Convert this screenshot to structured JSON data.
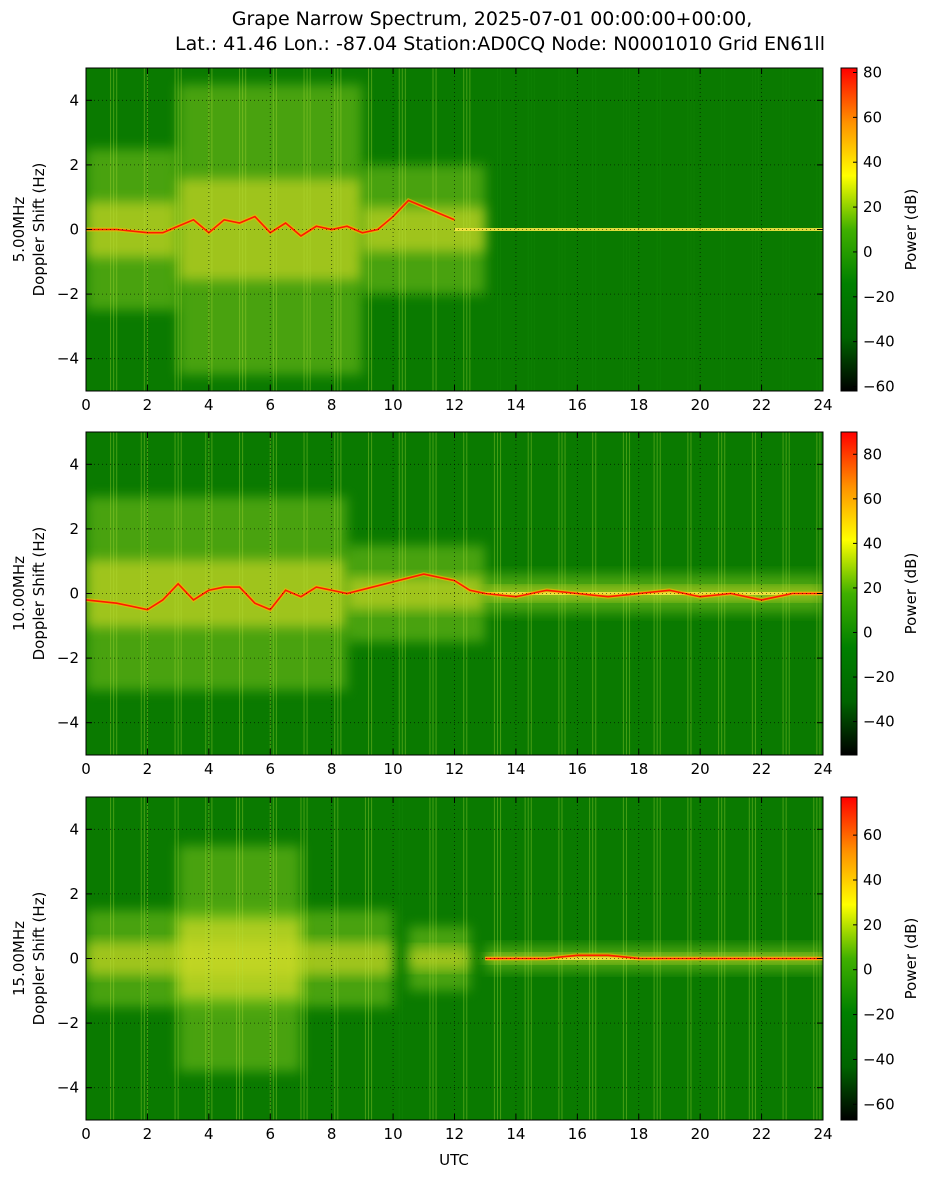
{
  "figure": {
    "title_line1": "Grape Narrow Spectrum, 2025-07-01 00:00:00+00:00,",
    "title_line2": "Lat.: 41.46 Lon.: -87.04 Station:AD0CQ Node: N0001010 Grid EN61ll",
    "xlabel": "UTC"
  },
  "colors": {
    "background_green": "#0a7a00",
    "trace_red": "#ff1a00",
    "activity_yellow": "#f4e62a",
    "colormap": [
      "#000000",
      "#006400",
      "#008000",
      "#40b000",
      "#ffff00",
      "#ff9000",
      "#ff0000"
    ]
  },
  "chart_data": [
    {
      "type": "heatmap",
      "band_label": "5.00MHz",
      "ylabel": "Doppler Shift (Hz)",
      "xlim": [
        0,
        24
      ],
      "ylim": [
        -5,
        5
      ],
      "x_ticks": [
        "0",
        "2",
        "4",
        "6",
        "8",
        "10",
        "12",
        "14",
        "16",
        "18",
        "20",
        "22",
        "24"
      ],
      "y_ticks": [
        "4",
        "2",
        "0",
        "−2",
        "−4"
      ],
      "grid": true,
      "colorbar": {
        "label": "Power (dB)",
        "range": [
          -62,
          82
        ],
        "ticks": [
          "80",
          "60",
          "40",
          "20",
          "0",
          "−20",
          "−40",
          "−60"
        ]
      },
      "activity": [
        {
          "x": [
            0.0,
            3.0
          ],
          "y_spread": 2.5
        },
        {
          "x": [
            3.0,
            9.0
          ],
          "y_spread": 4.5
        },
        {
          "x": [
            9.0,
            13.0
          ],
          "y_spread": 2.0
        }
      ],
      "doppler_trace": {
        "x": [
          0,
          1,
          2,
          2.5,
          3,
          3.5,
          4,
          4.5,
          5,
          5.5,
          6,
          6.5,
          7,
          7.5,
          8,
          8.5,
          9,
          9.5,
          10,
          10.5,
          11,
          11.5,
          12
        ],
        "y": [
          0,
          0,
          -0.1,
          -0.1,
          0.1,
          0.3,
          -0.1,
          0.3,
          0.2,
          0.4,
          -0.1,
          0.2,
          -0.2,
          0.1,
          0.0,
          0.1,
          -0.1,
          0.0,
          0.4,
          0.9,
          0.7,
          0.5,
          0.3
        ]
      },
      "carrier_line": {
        "x": [
          12,
          24
        ],
        "y": 0
      }
    },
    {
      "type": "heatmap",
      "band_label": "10.00MHz",
      "ylabel": "Doppler Shift (Hz)",
      "xlim": [
        0,
        24
      ],
      "ylim": [
        -5,
        5
      ],
      "x_ticks": [
        "0",
        "2",
        "4",
        "6",
        "8",
        "10",
        "12",
        "14",
        "16",
        "18",
        "20",
        "22",
        "24"
      ],
      "y_ticks": [
        "4",
        "2",
        "0",
        "−2",
        "−4"
      ],
      "grid": true,
      "colorbar": {
        "label": "Power (dB)",
        "range": [
          -55,
          90
        ],
        "ticks": [
          "80",
          "60",
          "40",
          "20",
          "0",
          "−20",
          "−40"
        ]
      },
      "activity": [
        {
          "x": [
            0.0,
            8.5
          ],
          "y_spread": 3.0
        },
        {
          "x": [
            8.5,
            13.0
          ],
          "y_spread": 1.5
        },
        {
          "x": [
            13.0,
            24.0
          ],
          "y_spread": 0.6
        }
      ],
      "doppler_trace": {
        "x": [
          0,
          1,
          2,
          2.5,
          3,
          3.5,
          4,
          4.5,
          5,
          5.5,
          6,
          6.5,
          7,
          7.5,
          8,
          8.5,
          11,
          11.5,
          12,
          12.5,
          13,
          14,
          15,
          16,
          17,
          18,
          19,
          20,
          21,
          22,
          23,
          24
        ],
        "y": [
          -0.2,
          -0.3,
          -0.5,
          -0.2,
          0.3,
          -0.2,
          0.1,
          0.2,
          0.2,
          -0.3,
          -0.5,
          0.1,
          -0.1,
          0.2,
          0.1,
          0.0,
          0.6,
          0.5,
          0.4,
          0.1,
          0.0,
          -0.1,
          0.1,
          0.0,
          -0.1,
          0.0,
          0.1,
          -0.1,
          0.0,
          -0.2,
          0.0,
          0.0
        ]
      },
      "carrier_line": {
        "x": [
          13,
          24
        ],
        "y": 0
      }
    },
    {
      "type": "heatmap",
      "band_label": "15.00MHz",
      "ylabel": "Doppler Shift (Hz)",
      "xlim": [
        0,
        24
      ],
      "ylim": [
        -5,
        5
      ],
      "x_ticks": [
        "0",
        "2",
        "4",
        "6",
        "8",
        "10",
        "12",
        "14",
        "16",
        "18",
        "20",
        "22",
        "24"
      ],
      "y_ticks": [
        "4",
        "2",
        "0",
        "−2",
        "−4"
      ],
      "grid": true,
      "colorbar": {
        "label": "Power (dB)",
        "range": [
          -67,
          77
        ],
        "ticks": [
          "60",
          "40",
          "20",
          "0",
          "−20",
          "−40",
          "−60"
        ]
      },
      "activity": [
        {
          "x": [
            0.0,
            10.0
          ],
          "y_spread": 1.5
        },
        {
          "x": [
            3.0,
            7.0
          ],
          "y_spread": 3.5
        },
        {
          "x": [
            10.5,
            12.5
          ],
          "y_spread": 1.0
        },
        {
          "x": [
            13.0,
            24.0
          ],
          "y_spread": 0.4
        }
      ],
      "doppler_trace": {
        "x": [
          13,
          14,
          15,
          16,
          17,
          18,
          19,
          20,
          21,
          22,
          23,
          24
        ],
        "y": [
          0.0,
          0.0,
          0.0,
          0.1,
          0.1,
          0.0,
          0.0,
          0.0,
          0.0,
          0.0,
          0.0,
          0.0
        ]
      },
      "carrier_line": {
        "x": [
          13,
          24
        ],
        "y": 0
      }
    }
  ]
}
